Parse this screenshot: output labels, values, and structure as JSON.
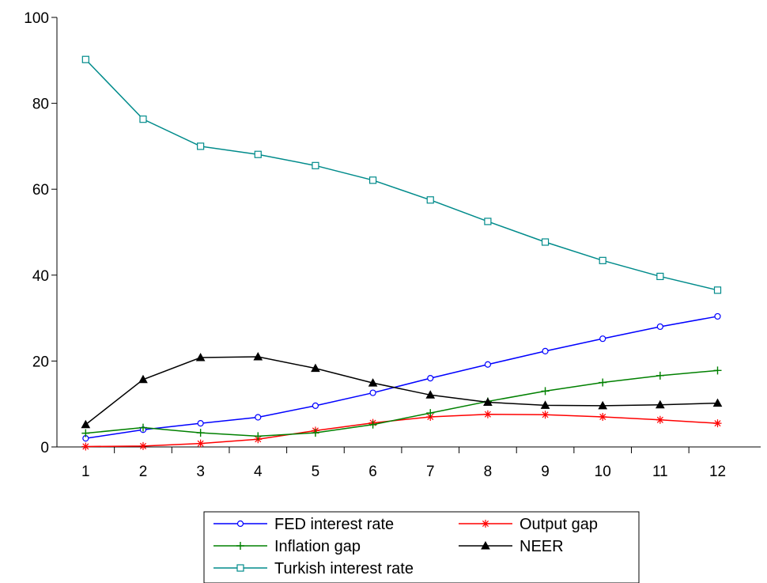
{
  "chart_data": {
    "type": "line",
    "title": "",
    "xlabel": "",
    "ylabel": "",
    "x": [
      1,
      2,
      3,
      4,
      5,
      6,
      7,
      8,
      9,
      10,
      11,
      12
    ],
    "xlim": [
      0.5,
      12.75
    ],
    "ylim": [
      0,
      100
    ],
    "yticks": [
      0,
      20,
      40,
      60,
      80,
      100
    ],
    "grid": false,
    "legend_position": "bottom",
    "series": [
      {
        "name": "FED interest rate",
        "color": "#0000ff",
        "marker": "circle",
        "values": [
          2.0,
          4.0,
          5.5,
          6.9,
          9.6,
          12.6,
          16.0,
          19.2,
          22.3,
          25.2,
          28.0,
          30.4
        ]
      },
      {
        "name": "Output gap",
        "color": "#ff0000",
        "marker": "asterisk",
        "values": [
          0.1,
          0.2,
          0.8,
          1.8,
          3.8,
          5.6,
          7.0,
          7.6,
          7.5,
          7.0,
          6.3,
          5.5
        ]
      },
      {
        "name": "Inflation gap",
        "color": "#008000",
        "marker": "plus",
        "values": [
          3.2,
          4.5,
          3.3,
          2.5,
          3.3,
          5.2,
          7.9,
          10.6,
          13.0,
          15.0,
          16.6,
          17.8
        ]
      },
      {
        "name": "NEER",
        "color": "#000000",
        "marker": "triangle",
        "values": [
          5.2,
          15.7,
          20.8,
          21.0,
          18.3,
          14.9,
          12.1,
          10.4,
          9.7,
          9.6,
          9.8,
          10.2
        ]
      },
      {
        "name": "Turkish interest rate",
        "color": "#008b8b",
        "marker": "square",
        "values": [
          90.2,
          76.3,
          70.0,
          68.1,
          65.5,
          62.1,
          57.5,
          52.5,
          47.7,
          43.4,
          39.7,
          36.5
        ]
      }
    ]
  }
}
